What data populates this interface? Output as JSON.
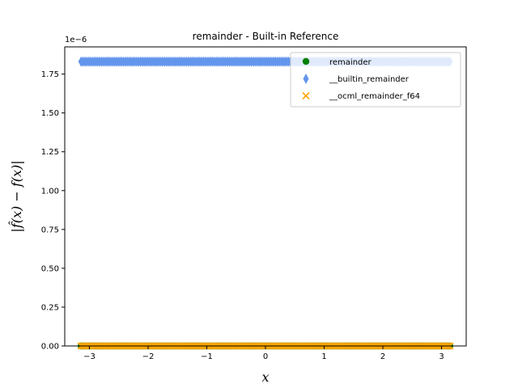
{
  "chart_data": {
    "type": "scatter",
    "title": "remainder - Built-in Reference",
    "xlabel": "x",
    "ylabel": "|f̂(x) − f(x)|",
    "y_offset_label": "1e−6",
    "xlim": [
      -3.42,
      3.42
    ],
    "ylim": [
      0,
      1.925
    ],
    "x_ticks": [
      -3,
      -2,
      -1,
      0,
      1,
      2,
      3
    ],
    "x_tick_labels": [
      "−3",
      "−2",
      "−1",
      "0",
      "1",
      "2",
      "3"
    ],
    "y_ticks": [
      0,
      0.25,
      0.5,
      0.75,
      1.0,
      1.25,
      1.5,
      1.75
    ],
    "y_tick_labels": [
      "0.00",
      "0.25",
      "0.50",
      "0.75",
      "1.00",
      "1.25",
      "1.50",
      "1.75"
    ],
    "grid": false,
    "legend_position": "top-right",
    "x_range": [
      -3.14159,
      3.14159
    ],
    "series": [
      {
        "name": "remainder",
        "marker": "circle",
        "color": "#008000",
        "y_value": 0
      },
      {
        "name": "__builtin_remainder",
        "marker": "diamond",
        "color": "#6495ED",
        "y_value": 1.83
      },
      {
        "name": "__ocml_remainder_f64",
        "marker": "x",
        "color": "#FFA500",
        "y_value": 0
      }
    ]
  }
}
